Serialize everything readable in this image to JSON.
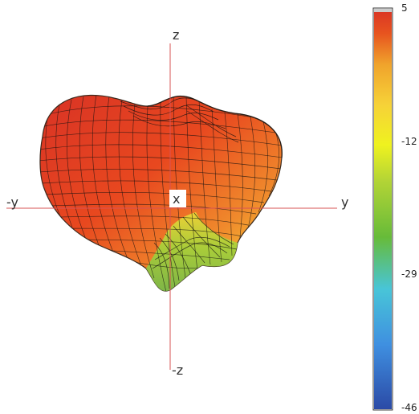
{
  "chart_data": {
    "type": "3d-surface",
    "view": "front",
    "axes": {
      "plus_z": "z",
      "minus_z": "-z",
      "minus_y": "-y",
      "plus_y": "y",
      "x": "x"
    },
    "colorbar": {
      "min": -46,
      "max": 5,
      "tick_labels": [
        "5",
        "-12",
        "-29",
        "-46"
      ],
      "tick_values": [
        5,
        -12,
        -29,
        -46
      ],
      "colors": [
        "#2b4aa6",
        "#3f8fe0",
        "#48c5d8",
        "#67bb39",
        "#b3d436",
        "#eff21f",
        "#f6d238",
        "#f0a42c",
        "#e7531f",
        "#d93325"
      ]
    },
    "surface": {
      "description_style": "radiation-pattern-like mesh",
      "gridlines": true
    }
  }
}
